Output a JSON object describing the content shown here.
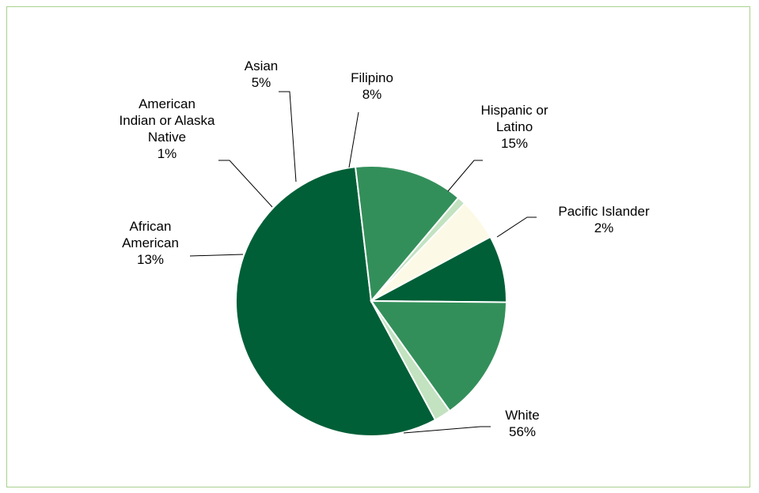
{
  "chart_data": {
    "type": "pie",
    "title": "",
    "start_angle_deg": 61.7,
    "direction": "clockwise",
    "slices": [
      {
        "label_lines": [
          "White"
        ],
        "pct_text": "56%",
        "value": 56,
        "color": "#005f37"
      },
      {
        "label_lines": [
          "African",
          "American"
        ],
        "pct_text": "13%",
        "value": 13,
        "color": "#338f5a"
      },
      {
        "label_lines": [
          "American",
          "Indian or Alaska",
          "Native"
        ],
        "pct_text": "1%",
        "value": 1,
        "color": "#c2e2c0"
      },
      {
        "label_lines": [
          "Asian"
        ],
        "pct_text": "5%",
        "value": 5,
        "color": "#fcfae6"
      },
      {
        "label_lines": [
          "Filipino"
        ],
        "pct_text": "8%",
        "value": 8,
        "color": "#005f37"
      },
      {
        "label_lines": [
          "Hispanic or",
          "Latino"
        ],
        "pct_text": "15%",
        "value": 15,
        "color": "#338f5a"
      },
      {
        "label_lines": [
          "Pacific Islander"
        ],
        "pct_text": "2%",
        "value": 2,
        "color": "#c2e2c0"
      }
    ]
  }
}
